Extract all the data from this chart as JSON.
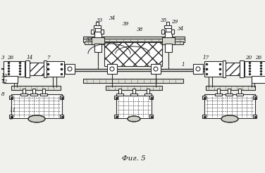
{
  "caption": "Фиг. 5",
  "bg_color": "#f0f0ec",
  "lc": "#2a2a2a",
  "fig_width": 3.76,
  "fig_height": 2.46,
  "dpi": 100
}
